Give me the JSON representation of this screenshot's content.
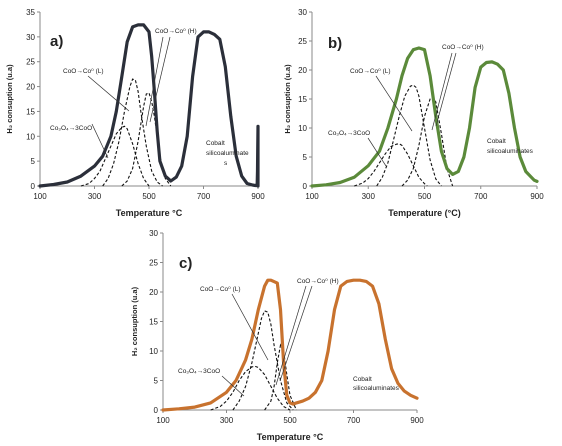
{
  "chart_data": [
    {
      "type": "line",
      "panel_label": "a)",
      "xlabel": "Temperature °C",
      "ylabel": "H₂ consuption (u.a)",
      "xlim": [
        100,
        900
      ],
      "ylim": [
        0,
        35
      ],
      "xticks": [
        "100",
        "300",
        "500",
        "700",
        "900"
      ],
      "yticks": [
        "0",
        "5",
        "10",
        "15",
        "20",
        "25",
        "30",
        "35"
      ],
      "color": "#2b2f3a",
      "grid": false,
      "total": {
        "x": [
          100,
          150,
          200,
          250,
          300,
          330,
          360,
          380,
          400,
          420,
          440,
          460,
          480,
          500,
          510,
          520,
          530,
          540,
          560,
          580,
          600,
          620,
          640,
          660,
          680,
          700,
          720,
          740,
          760,
          780,
          800,
          820,
          840,
          860,
          880,
          890,
          895,
          897,
          898,
          899,
          900,
          900
        ],
        "y": [
          0,
          0.3,
          0.8,
          2,
          4,
          6,
          10,
          15,
          22,
          29,
          32,
          32.4,
          32.4,
          31,
          26,
          19,
          11,
          5,
          2,
          1,
          1.8,
          4,
          10,
          22,
          30,
          31,
          31,
          30.5,
          29.5,
          24,
          14,
          6,
          2,
          0.5,
          0.2,
          0.1,
          0.1,
          0.5,
          3,
          7,
          12,
          0
        ]
      },
      "peaks": [
        {
          "x": [
            250,
            280,
            300,
            320,
            340,
            360,
            380,
            400,
            410,
            420,
            440,
            460,
            480,
            500
          ],
          "y": [
            0,
            0.5,
            1.5,
            3,
            5.5,
            8,
            10.5,
            11.8,
            12,
            11.5,
            8.5,
            4.5,
            1.5,
            0
          ]
        },
        {
          "x": [
            330,
            350,
            370,
            390,
            410,
            430,
            440,
            450,
            460,
            470,
            490,
            510,
            530,
            550
          ],
          "y": [
            0,
            1.5,
            4.5,
            9,
            15,
            20,
            21.5,
            21.3,
            19,
            15,
            8,
            3,
            0.8,
            0
          ]
        },
        {
          "x": [
            400,
            420,
            440,
            460,
            480,
            490,
            500,
            510,
            520,
            540,
            560,
            580
          ],
          "y": [
            0,
            1,
            3.5,
            9,
            16,
            18.5,
            18.7,
            17,
            14,
            6,
            1.5,
            0
          ]
        }
      ],
      "annotations": [
        {
          "text": "Co₃O₄→3CoO"
        },
        {
          "text": "CoO→Co⁰ (L)"
        },
        {
          "text": "CoO→Co⁰ (H)"
        },
        {
          "text": "Cobalt"
        },
        {
          "text": "silicoaluminate"
        },
        {
          "text": "s"
        }
      ]
    },
    {
      "type": "line",
      "panel_label": "b)",
      "xlabel": "Temperature (°C)",
      "ylabel": "H₂ consuption (u.a)",
      "xlim": [
        100,
        900
      ],
      "ylim": [
        0,
        30
      ],
      "xticks": [
        "100",
        "300",
        "500",
        "700",
        "900"
      ],
      "yticks": [
        "0",
        "5",
        "10",
        "15",
        "20",
        "25",
        "30"
      ],
      "color": "#5b8a3a",
      "grid": false,
      "total": {
        "x": [
          100,
          150,
          200,
          250,
          300,
          340,
          370,
          400,
          420,
          440,
          460,
          480,
          500,
          520,
          540,
          560,
          580,
          600,
          620,
          640,
          660,
          680,
          700,
          720,
          740,
          760,
          780,
          800,
          820,
          840,
          860,
          880,
          890,
          900
        ],
        "y": [
          0,
          0.2,
          0.6,
          1.5,
          3.5,
          6,
          10,
          15,
          19,
          22,
          23.5,
          23.8,
          23.5,
          19,
          12,
          6,
          3,
          2,
          2.5,
          5,
          10,
          17,
          20.5,
          21.3,
          21.4,
          21,
          20,
          16,
          10,
          5,
          2.5,
          1.5,
          1,
          0.8
        ]
      },
      "peaks": [
        {
          "x": [
            250,
            280,
            300,
            320,
            340,
            360,
            380,
            400,
            410,
            420,
            440,
            460,
            480,
            500,
            510
          ],
          "y": [
            0,
            0.5,
            1.3,
            2.5,
            4,
            5.5,
            6.8,
            7.2,
            7.3,
            7,
            5.5,
            3.5,
            1.5,
            0.4,
            0
          ]
        },
        {
          "x": [
            330,
            350,
            370,
            390,
            410,
            430,
            450,
            460,
            470,
            480,
            500,
            520,
            540,
            560
          ],
          "y": [
            0,
            1.5,
            4,
            8,
            12,
            15.5,
            17.2,
            17.4,
            17,
            15.5,
            10,
            4.5,
            1.2,
            0
          ]
        },
        {
          "x": [
            420,
            440,
            460,
            480,
            500,
            520,
            530,
            540,
            560,
            580,
            600
          ],
          "y": [
            0,
            1,
            3,
            7,
            12,
            15,
            15.3,
            14.5,
            9,
            3,
            0
          ]
        }
      ],
      "annotations": [
        {
          "text": "Co₃O₄→3CoO"
        },
        {
          "text": "CoO→Co⁰ (L)"
        },
        {
          "text": "CoO→Co⁰ (H)"
        },
        {
          "text": "Cobalt"
        },
        {
          "text": "silicoaluminates"
        }
      ]
    },
    {
      "type": "line",
      "panel_label": "c)",
      "xlabel": "Temperature °C",
      "ylabel": "H₂ consuption (u.a)",
      "xlim": [
        100,
        900
      ],
      "ylim": [
        0,
        30
      ],
      "xticks": [
        "100",
        "300",
        "500",
        "700",
        "900"
      ],
      "yticks": [
        "0",
        "5",
        "10",
        "15",
        "20",
        "25",
        "30"
      ],
      "color": "#c8722e",
      "grid": false,
      "total": {
        "x": [
          100,
          150,
          200,
          250,
          300,
          330,
          360,
          380,
          400,
          420,
          430,
          440,
          460,
          470,
          480,
          490,
          500,
          510,
          520,
          540,
          560,
          580,
          600,
          620,
          640,
          660,
          680,
          700,
          720,
          740,
          760,
          780,
          800,
          820,
          840,
          860,
          880,
          900
        ],
        "y": [
          0,
          0.2,
          0.5,
          1.2,
          3,
          5,
          8.5,
          12,
          17,
          21,
          22,
          22,
          21.5,
          17,
          8,
          2.5,
          1.2,
          1,
          1.2,
          1.5,
          2,
          3,
          5,
          10,
          17,
          21,
          21.8,
          22,
          22,
          21.8,
          21,
          18,
          12,
          7,
          4.5,
          3.2,
          2.5,
          2
        ]
      },
      "peaks": [
        {
          "x": [
            250,
            280,
            300,
            320,
            340,
            360,
            380,
            390,
            400,
            420,
            440,
            460,
            480,
            500
          ],
          "y": [
            0,
            0.6,
            1.5,
            3,
            5,
            6.5,
            7.3,
            7.4,
            7.2,
            6,
            4,
            2,
            0.6,
            0
          ]
        },
        {
          "x": [
            320,
            340,
            360,
            380,
            400,
            410,
            420,
            430,
            440,
            450,
            470,
            490,
            510
          ],
          "y": [
            0,
            1.5,
            4,
            8,
            13,
            15.5,
            16.8,
            16.6,
            14.5,
            11,
            5,
            1.2,
            0
          ]
        },
        {
          "x": [
            420,
            440,
            450,
            460,
            470,
            480,
            490,
            500,
            520
          ],
          "y": [
            0,
            1.5,
            4,
            8,
            11,
            10,
            6,
            2.5,
            0
          ]
        }
      ],
      "annotations": [
        {
          "text": "Co₃O₄→3CoO"
        },
        {
          "text": "CoO→Co⁰ (L)"
        },
        {
          "text": "CoO→Co⁰ (H)"
        },
        {
          "text": "Cobalt"
        },
        {
          "text": "silicoaluminates"
        }
      ]
    }
  ]
}
